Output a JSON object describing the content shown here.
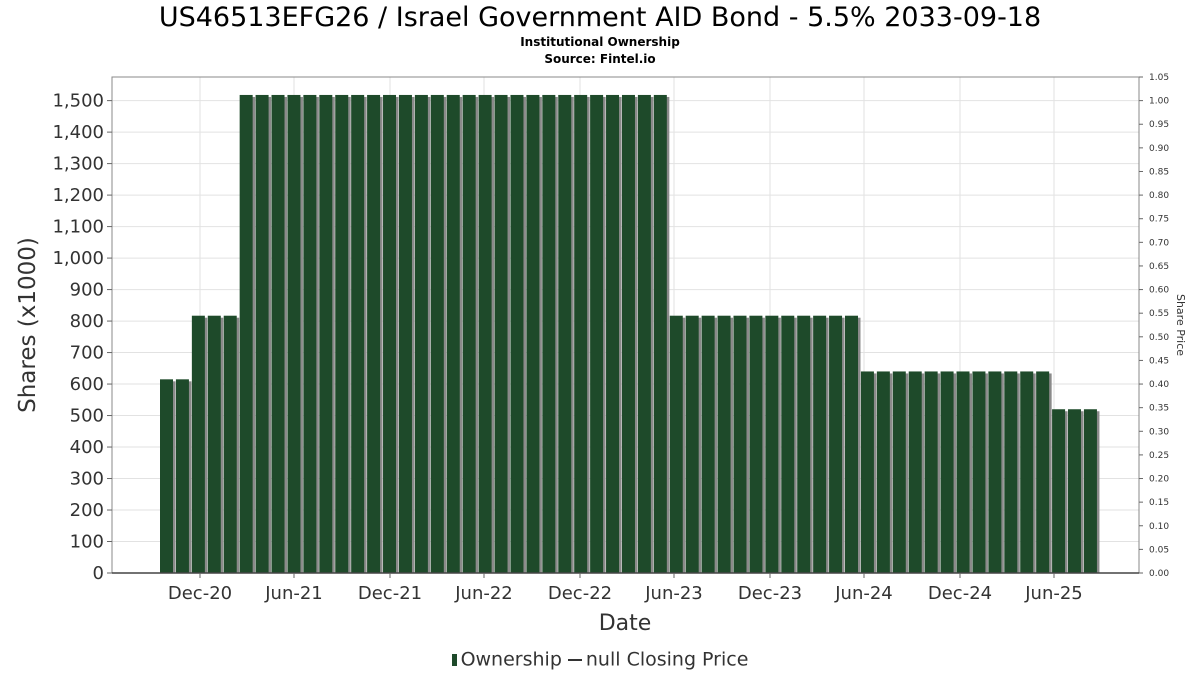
{
  "chart_data": {
    "type": "bar",
    "title": "US46513EFG26 / Israel Government AID Bond - 5.5% 2033-09-18",
    "subtitle": "Institutional Ownership",
    "source": "Source: Fintel.io",
    "xlabel": "Date",
    "ylabel": "Shares (x1000)",
    "y2label": "Share Price",
    "ylim": [
      0,
      1575
    ],
    "y2lim": [
      0,
      1.05
    ],
    "y_ticks": [
      "0",
      "100",
      "200",
      "300",
      "400",
      "500",
      "600",
      "700",
      "800",
      "900",
      "1,000",
      "1,100",
      "1,200",
      "1,300",
      "1,400",
      "1,500"
    ],
    "y_tick_values": [
      0,
      100,
      200,
      300,
      400,
      500,
      600,
      700,
      800,
      900,
      1000,
      1100,
      1200,
      1300,
      1400,
      1500
    ],
    "y2_ticks": [
      "0.00",
      "0.05",
      "0.10",
      "0.15",
      "0.20",
      "0.25",
      "0.30",
      "0.35",
      "0.40",
      "0.45",
      "0.50",
      "0.55",
      "0.60",
      "0.65",
      "0.70",
      "0.75",
      "0.80",
      "0.85",
      "0.90",
      "0.95",
      "1.00",
      "1.05"
    ],
    "x_ticks": [
      "Dec-20",
      "Jun-21",
      "Dec-21",
      "Jun-22",
      "Dec-22",
      "Jun-23",
      "Dec-23",
      "Jun-24",
      "Dec-24",
      "Jun-25"
    ],
    "grid": true,
    "legend_position": "bottom",
    "legend": [
      "Ownership",
      "null Closing Price"
    ],
    "bar_color": "#1e4a2a",
    "shadow_color": "#8a8a8a",
    "series": [
      {
        "name": "Ownership",
        "values": [
          615,
          615,
          817,
          817,
          817,
          1518,
          1518,
          1518,
          1518,
          1518,
          1518,
          1518,
          1518,
          1518,
          1518,
          1518,
          1518,
          1518,
          1518,
          1518,
          1518,
          1518,
          1518,
          1518,
          1518,
          1518,
          1518,
          1518,
          1518,
          1518,
          1518,
          1518,
          817,
          817,
          817,
          817,
          817,
          817,
          817,
          817,
          817,
          817,
          817,
          817,
          640,
          640,
          640,
          640,
          640,
          640,
          640,
          640,
          640,
          640,
          640,
          640,
          520,
          520,
          520
        ]
      }
    ]
  }
}
